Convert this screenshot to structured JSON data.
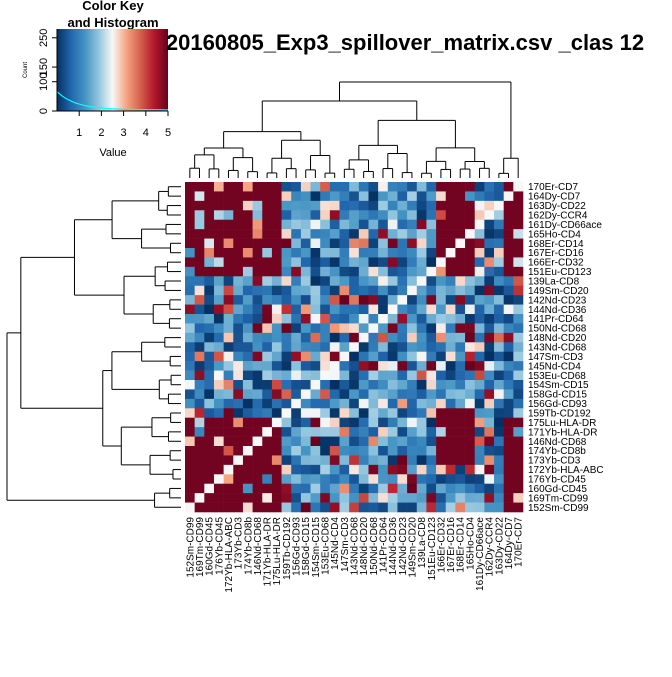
{
  "chart_data": {
    "type": "heatmap",
    "title": "20160805_Exp3_spillover_matrix.csv _clas 12",
    "row_labels": [
      "170Er-CD7",
      "164Dy-CD7",
      "163Dy-CD22",
      "162Dy-CCR4",
      "161Dy-CD66ace",
      "165Ho-CD4",
      "168Er-CD14",
      "167Er-CD16",
      "166Er-CD32",
      "151Eu-CD123",
      "139La-CD8",
      "149Sm-CD20",
      "142Nd-CD23",
      "144Nd-CD36",
      "141Pr-CD64",
      "150Nd-CD68",
      "148Nd-CD20",
      "143Nd-CD68",
      "147Sm-CD3",
      "145Nd-CD4",
      "153Eu-CD68",
      "154Sm-CD15",
      "158Gd-CD15",
      "156Gd-CD93",
      "159Tb-CD192",
      "175Lu-HLA-DR",
      "171Yb-HLA-DR",
      "146Nd-CD68",
      "174Yb-CD8b",
      "173Yb-CD3",
      "172Yb-HLA-ABC",
      "176Yb-CD45",
      "160Gd-CD45",
      "169Tm-CD99",
      "152Sm-CD99"
    ],
    "col_labels": [
      "152Sm-CD99",
      "169Tm-CD99",
      "160Gd-CD45",
      "176Yb-CD45",
      "172Yb-HLA-ABC",
      "173Yb-CD3",
      "174Yb-CD8b",
      "146Nd-CD68",
      "171Yb-HLA-DR",
      "175Lu-HLA-DR",
      "159Tb-CD192",
      "156Gd-CD93",
      "158Gd-CD15",
      "154Sm-CD15",
      "153Eu-CD68",
      "145Nd-CD4",
      "147Sm-CD3",
      "143Nd-CD68",
      "148Nd-CD20",
      "150Nd-CD68",
      "141Pr-CD64",
      "144Nd-CD36",
      "142Nd-CD23",
      "149Sm-CD20",
      "139La-CD8",
      "151Eu-CD123",
      "166Er-CD32",
      "167Er-CD16",
      "168Er-CD14",
      "165Ho-CD4",
      "161Dy-CD66ace",
      "162Dy-CCR4",
      "163Dy-CD22",
      "164Dy-CD7",
      "170Er-CD7"
    ],
    "color_key": {
      "title_line1": "Color Key",
      "title_line2": "and Histogram",
      "xlabel": "Value",
      "ylabel": "Count",
      "x_ticks": [
        "1",
        "2",
        "3",
        "4",
        "5"
      ],
      "y_ticks": [
        "0",
        "100",
        "150",
        "250"
      ],
      "colors": [
        "#053061",
        "#2166ac",
        "#4393c3",
        "#92c5de",
        "#f7f7f7",
        "#f4a582",
        "#d6604d",
        "#b2182b",
        "#67001f"
      ],
      "range": [
        0,
        5
      ],
      "histogram_color": "#00ffff"
    }
  }
}
